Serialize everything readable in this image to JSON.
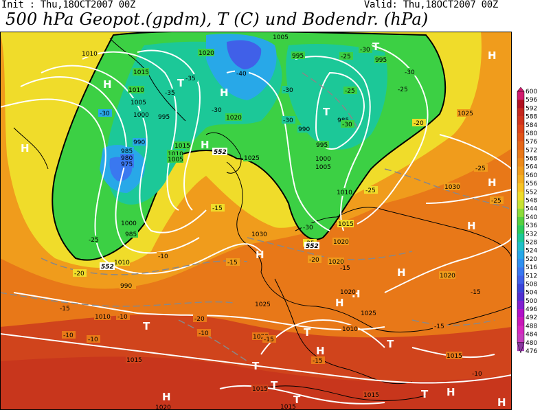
{
  "header": {
    "init": "Init : Thu,18OCT2007 00Z",
    "valid": "Valid: Thu,18OCT2007 00Z",
    "title": "500 hPa Geopot.(gpdm), T (C) und Bodendr. (hPa)"
  },
  "colorbar": {
    "levels": [
      "600",
      "596",
      "592",
      "588",
      "584",
      "580",
      "576",
      "572",
      "568",
      "564",
      "560",
      "556",
      "552",
      "548",
      "544",
      "540",
      "536",
      "532",
      "528",
      "524",
      "520",
      "516",
      "512",
      "508",
      "504",
      "500",
      "496",
      "492",
      "488",
      "484",
      "480",
      "476"
    ],
    "colors": [
      "#d21a6e",
      "#b01020",
      "#c4281e",
      "#d0341c",
      "#dc441a",
      "#e05418",
      "#e46618",
      "#e87818",
      "#ec8a1a",
      "#f09c1c",
      "#f4ae20",
      "#f8c424",
      "#f0dc2a",
      "#c8e234",
      "#8cdc3a",
      "#56d040",
      "#2ccc5c",
      "#1cc898",
      "#20c0c8",
      "#28a8e8",
      "#3090f0",
      "#3a78f0",
      "#4060e8",
      "#3a44d8",
      "#5030d0",
      "#8020d0",
      "#b010c8",
      "#c818b8",
      "#d428c0",
      "#c43cbe",
      "#a040b0",
      "#8a3aa0"
    ]
  },
  "map": {
    "highs": [
      "H",
      "H",
      "H",
      "H",
      "H",
      "H",
      "H",
      "H",
      "H",
      "H",
      "H",
      "H",
      "H",
      "H",
      "H"
    ],
    "lows": [
      "T",
      "T",
      "T",
      "T",
      "T",
      "T",
      "T",
      "T",
      "T",
      "T",
      "T"
    ],
    "pressure_labels": [
      "1010",
      "1015",
      "1010",
      "1005",
      "1000",
      "995",
      "990",
      "985",
      "980",
      "975",
      "1015",
      "1010",
      "1005",
      "1020",
      "1020",
      "1025",
      "1030",
      "1025",
      "995",
      "995",
      "985",
      "990",
      "995",
      "1000",
      "1005",
      "1010",
      "1015",
      "1020",
      "1020",
      "1020",
      "1025",
      "1030",
      "1010",
      "1015",
      "1020",
      "1025",
      "1015",
      "1015",
      "1020",
      "1015",
      "1015",
      "1010",
      "1000",
      "985",
      "990",
      "1005",
      "1010",
      "1020"
    ],
    "temperature_labels": [
      "-35",
      "-30",
      "-25",
      "-20",
      "-30",
      "-40",
      "-35",
      "-30",
      "-25",
      "-30",
      "-30",
      "-25",
      "-30",
      "-25",
      "-30",
      "-20",
      "-25",
      "-30",
      "-25",
      "-15",
      "-10",
      "-15",
      "-20",
      "-25",
      "-15",
      "-15",
      "-10",
      "-10",
      "-15",
      "-10",
      "-20",
      "-15",
      "-10",
      "-15",
      "-10",
      "-15",
      "-25"
    ],
    "geopotential_labels": [
      "552",
      "552",
      "552"
    ]
  }
}
